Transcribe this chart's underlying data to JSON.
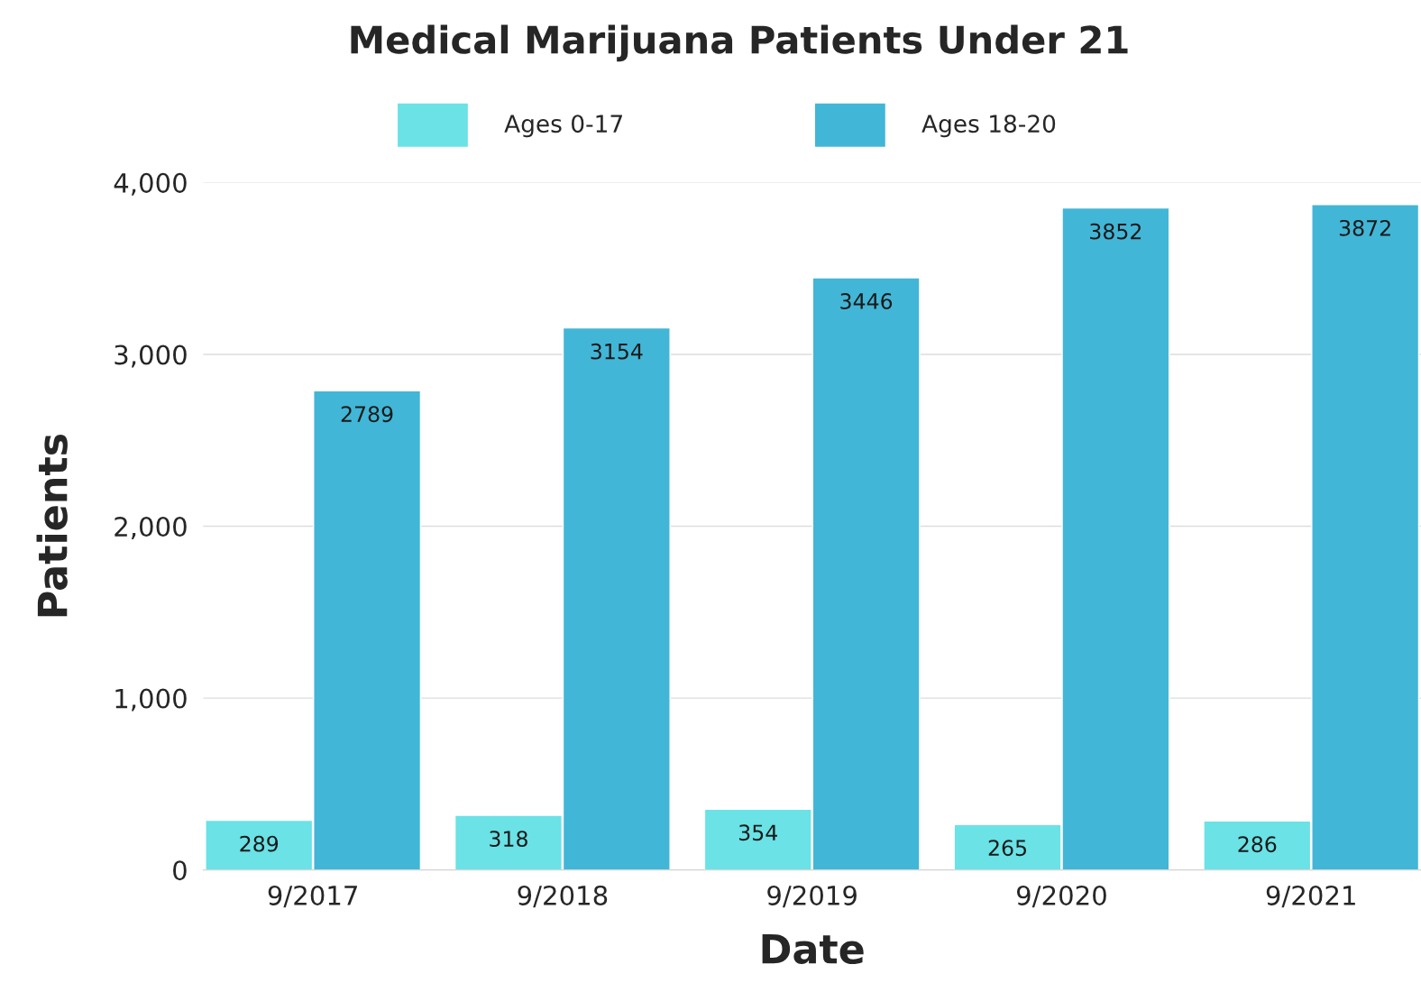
{
  "chart_data": {
    "type": "bar",
    "title": "Medical Marijuana Patients Under 21",
    "xlabel": "Date",
    "ylabel": "Patients",
    "categories": [
      "9/2017",
      "9/2018",
      "9/2019",
      "9/2020",
      "9/2021"
    ],
    "series": [
      {
        "name": "Ages 0-17",
        "color": "#6ae2e6",
        "values": [
          289,
          318,
          354,
          265,
          286
        ]
      },
      {
        "name": "Ages 18-20",
        "color": "#42b6d6",
        "values": [
          2789,
          3154,
          3446,
          3852,
          3872
        ]
      }
    ],
    "ylim": [
      0,
      4000
    ],
    "yticks": [
      {
        "value": 0,
        "label": "0"
      },
      {
        "value": 1000,
        "label": "1,000"
      },
      {
        "value": 2000,
        "label": "2,000"
      },
      {
        "value": 3000,
        "label": "3,000"
      },
      {
        "value": 4000,
        "label": "4,000"
      }
    ],
    "grid": "y",
    "legend": "top",
    "data_labels": true
  }
}
